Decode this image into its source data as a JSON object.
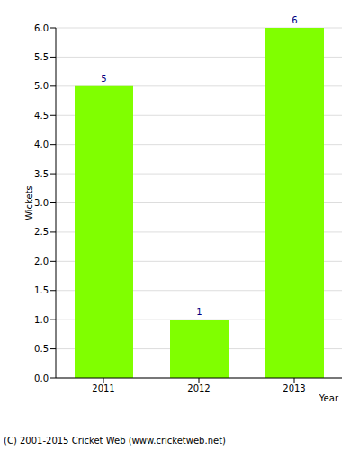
{
  "chart_data": {
    "type": "bar",
    "x_label": "Year",
    "y_label": "Wickets",
    "categories": [
      "2011",
      "2012",
      "2013"
    ],
    "values": [
      5,
      1,
      6
    ],
    "color": "#80ff00",
    "ylim": [
      0,
      6
    ],
    "yticks": [
      {
        "value": 0,
        "label": "0.0"
      },
      {
        "value": 0.5,
        "label": "0.5"
      },
      {
        "value": 1,
        "label": "1.0"
      },
      {
        "value": 1.5,
        "label": "1.5"
      },
      {
        "value": 2,
        "label": "2.0"
      },
      {
        "value": 2.5,
        "label": "2.5"
      },
      {
        "value": 3,
        "label": "3.0"
      },
      {
        "value": 3.5,
        "label": "3.5"
      },
      {
        "value": 4,
        "label": "4.0"
      },
      {
        "value": 4.5,
        "label": "4.5"
      },
      {
        "value": 5,
        "label": "5.0"
      },
      {
        "value": 5.5,
        "label": "5.5"
      },
      {
        "value": 6,
        "label": "6.0"
      }
    ],
    "grid": true,
    "data_labels": true,
    "annotations": [
      "(C) 2001-2015 Cricket Web (www.cricketweb.net)"
    ]
  }
}
